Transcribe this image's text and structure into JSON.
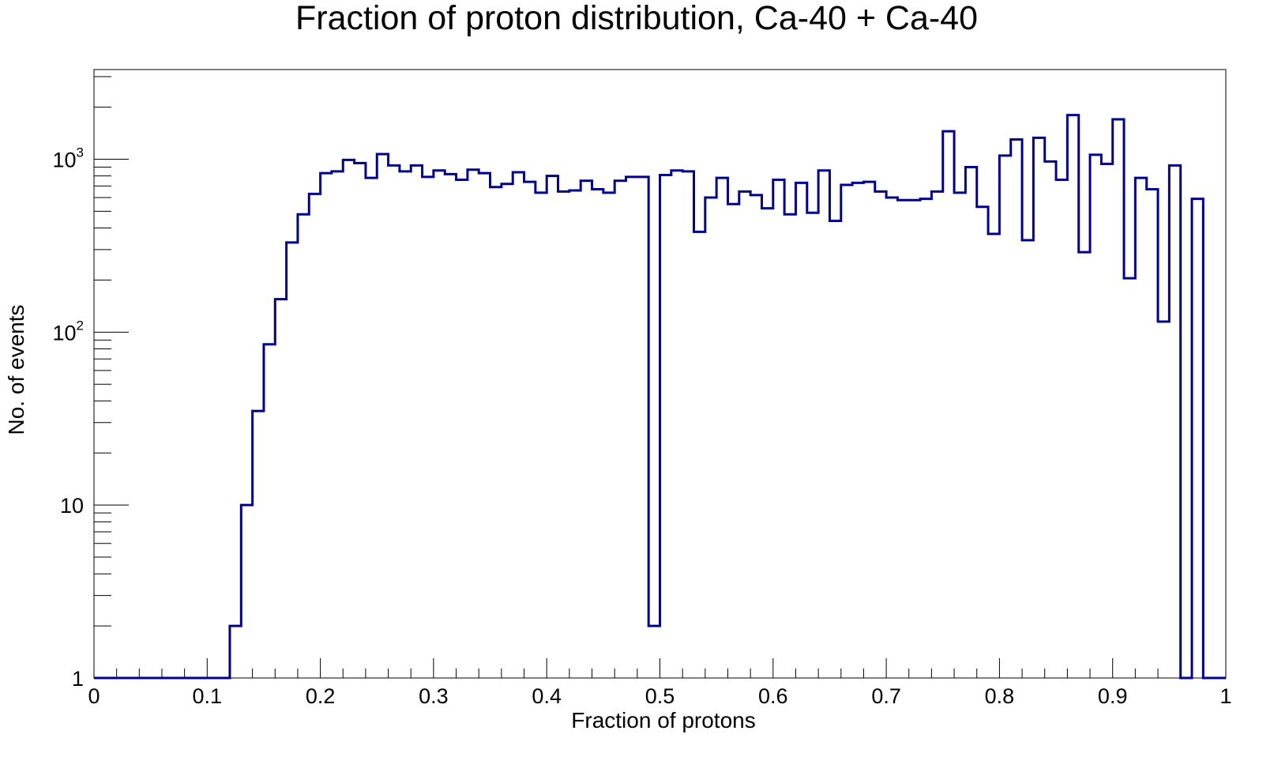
{
  "chart_data": {
    "type": "histogram",
    "title": "Fraction of proton distribution, Ca-40 + Ca-40",
    "xlabel": "Fraction of protons",
    "ylabel": "No. of events",
    "xlim": [
      0,
      1
    ],
    "ylim": [
      1,
      3300
    ],
    "y_scale": "log",
    "grid": false,
    "legend": "none",
    "line_color": "#00008b",
    "bin_width": 0.01,
    "x_ticks": [
      {
        "value": 0,
        "label": "0"
      },
      {
        "value": 0.1,
        "label": "0.1"
      },
      {
        "value": 0.2,
        "label": "0.2"
      },
      {
        "value": 0.3,
        "label": "0.3"
      },
      {
        "value": 0.4,
        "label": "0.4"
      },
      {
        "value": 0.5,
        "label": "0.5"
      },
      {
        "value": 0.6,
        "label": "0.6"
      },
      {
        "value": 0.7,
        "label": "0.7"
      },
      {
        "value": 0.8,
        "label": "0.8"
      },
      {
        "value": 0.9,
        "label": "0.9"
      },
      {
        "value": 1,
        "label": "1"
      }
    ],
    "y_ticks": [
      {
        "value": 1,
        "base": "1",
        "exp": ""
      },
      {
        "value": 10,
        "base": "10",
        "exp": ""
      },
      {
        "value": 100,
        "base": "10",
        "exp": "2"
      },
      {
        "value": 1000,
        "base": "10",
        "exp": "3"
      }
    ],
    "values": [
      0,
      0,
      0,
      0,
      0,
      0,
      0,
      0,
      0,
      0,
      0,
      0,
      2,
      10,
      35,
      85,
      155,
      330,
      480,
      630,
      830,
      850,
      990,
      950,
      780,
      1070,
      920,
      850,
      920,
      790,
      860,
      820,
      760,
      870,
      830,
      690,
      720,
      840,
      740,
      640,
      800,
      650,
      660,
      750,
      670,
      640,
      750,
      790,
      790,
      2,
      810,
      860,
      850,
      380,
      600,
      780,
      550,
      650,
      620,
      520,
      760,
      480,
      730,
      490,
      860,
      440,
      710,
      730,
      740,
      650,
      600,
      580,
      580,
      590,
      650,
      1450,
      640,
      900,
      530,
      370,
      1050,
      1300,
      340,
      1330,
      970,
      760,
      1800,
      290,
      1060,
      940,
      1700,
      205,
      780,
      670,
      115,
      920,
      0,
      590,
      0,
      0
    ]
  }
}
